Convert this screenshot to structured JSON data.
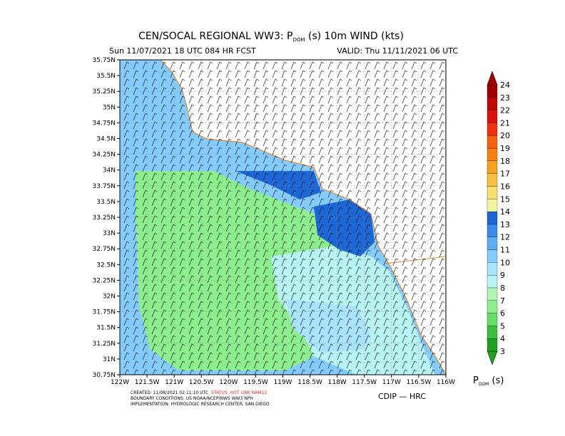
{
  "header": {
    "title": [
      "CEN/SOCAL REGIONAL WW3: P",
      "DOM",
      " (s) 10m WIND (kts)"
    ],
    "run": "Sun 11/07/2021 18 UTC 084 HR FCST",
    "valid": "VALID: Thu 11/11/2021 06 UTC"
  },
  "map": {
    "lat_labels": [
      "35.75N",
      "35.5N",
      "35.25N",
      "35N",
      "34.75N",
      "34.5N",
      "34.25N",
      "34N",
      "33.75N",
      "33.5N",
      "33.25N",
      "33N",
      "32.75N",
      "32.5N",
      "32.25N",
      "32N",
      "31.75N",
      "31.5N",
      "31.25N",
      "31N",
      "30.75N"
    ],
    "lon_labels": [
      "122W",
      "121.5W",
      "121W",
      "120.5W",
      "120W",
      "119.5W",
      "119W",
      "118.5W",
      "118W",
      "117.5W",
      "117W",
      "116.5W",
      "116W"
    ]
  },
  "colorbar": {
    "labels": [
      "3",
      "4",
      "5",
      "6",
      "7",
      "8",
      "9",
      "10",
      "11",
      "12",
      "13",
      "14",
      "15",
      "16",
      "17",
      "18",
      "19",
      "20",
      "21",
      "22",
      "23",
      "24"
    ],
    "colors": [
      "#1fa01f",
      "#3cbf3c",
      "#66dd66",
      "#8cee8c",
      "#b4f5b4",
      "#b8f4f4",
      "#a8e4ff",
      "#84ccff",
      "#5eaef5",
      "#3a8ce6",
      "#1c66d6",
      "#f4f4a0",
      "#f8e070",
      "#f8c040",
      "#f8a020",
      "#f88010",
      "#f86010",
      "#f03010",
      "#e01010",
      "#c00808",
      "#a00000"
    ],
    "title": [
      "P",
      "DOM",
      " (s)"
    ]
  },
  "footer": {
    "created": "CREATED: 11/08/2021 02:11:10 UTC",
    "status": "STATUS: HOT LINK NAM12",
    "boundary": "BOUNDARY CONDITIONS: US NOAA/NCEP/NWS WW3 NPH",
    "implementation": "IMPLEMENTATION: HYDROLOGIC RESEARCH CENTER, SAN DIEGO",
    "credit": "CDIP — HRC"
  }
}
